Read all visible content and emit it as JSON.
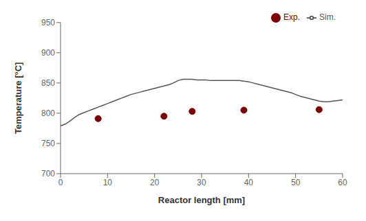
{
  "chart_data": {
    "type": "line",
    "xlabel": "Reactor length [mm]",
    "ylabel": "Temperature [°C]",
    "xlim": [
      0,
      60
    ],
    "ylim": [
      700,
      950
    ],
    "xticks": [
      0,
      10,
      20,
      30,
      40,
      50,
      60
    ],
    "yticks": [
      700,
      750,
      800,
      850,
      900,
      950
    ],
    "grid": false,
    "legend": "upper right",
    "series": [
      {
        "name": "Sim.",
        "type": "line",
        "color": "#555555",
        "line_style": "solid",
        "x": [
          0,
          1,
          2,
          3,
          4,
          5,
          6,
          7,
          8,
          9,
          10,
          11,
          12,
          13,
          14,
          15,
          16,
          17,
          18,
          19,
          20,
          21,
          22,
          23,
          24,
          25,
          26,
          27,
          28,
          29,
          30,
          31,
          32,
          33,
          34,
          35,
          36,
          37,
          38,
          39,
          40,
          41,
          42,
          43,
          44,
          45,
          46,
          47,
          48,
          49,
          50,
          51,
          52,
          53,
          54,
          55,
          56,
          57,
          58,
          59,
          60
        ],
        "values": [
          779,
          782,
          787,
          793,
          798,
          801,
          804,
          807,
          810,
          813,
          816,
          819,
          822,
          825,
          828,
          831,
          833,
          835,
          837,
          839,
          841,
          843,
          845,
          847,
          850,
          854,
          856,
          856,
          856,
          855,
          855,
          855,
          854,
          854,
          854,
          854,
          854,
          854,
          854,
          853,
          852,
          850,
          848,
          846,
          844,
          842,
          840,
          838,
          836,
          834,
          831,
          828,
          826,
          824,
          822,
          820,
          819,
          819,
          820,
          821,
          822
        ]
      },
      {
        "name": "Exp.",
        "type": "scatter",
        "color": "#7a0000",
        "marker": "circle",
        "line_style": "none",
        "x": [
          8,
          22,
          28,
          39,
          55
        ],
        "values": [
          791,
          795,
          803,
          805,
          806
        ]
      }
    ]
  }
}
